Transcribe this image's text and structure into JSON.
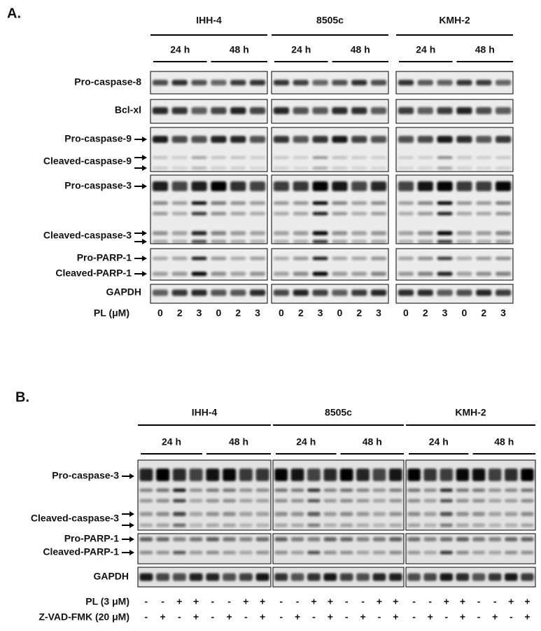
{
  "panels": [
    {
      "label": "A.",
      "cell_lines": [
        "IHH-4",
        "8505c",
        "KMH-2"
      ],
      "times": [
        "24 h",
        "48 h"
      ],
      "proteins": [
        "Pro-caspase-8",
        "Bcl-xl",
        "Pro-caspase-9",
        "Cleaved-caspase-9",
        "Pro-caspase-3",
        "Cleaved-caspase-3",
        "Pro-PARP-1",
        "Cleaved-PARP-1",
        "GAPDH"
      ],
      "treatments": [
        {
          "name": "PL (μM)",
          "lanes": [
            "0",
            "2",
            "3",
            "0",
            "2",
            "3"
          ]
        }
      ]
    },
    {
      "label": "B.",
      "cell_lines": [
        "IHH-4",
        "8505c",
        "KMH-2"
      ],
      "times": [
        "24 h",
        "48 h"
      ],
      "proteins": [
        "Pro-caspase-3",
        "Cleaved-caspase-3",
        "Pro-PARP-1",
        "Cleaved-PARP-1",
        "GAPDH"
      ],
      "treatments": [
        {
          "name": "PL (3 μM)",
          "lanes": [
            "-",
            "-",
            "+",
            "+",
            "-",
            "-",
            "+",
            "+"
          ]
        },
        {
          "name": "Z-VAD-FMK (20 μM)",
          "lanes": [
            "-",
            "+",
            "-",
            "+",
            "-",
            "+",
            "-",
            "+"
          ]
        }
      ]
    }
  ]
}
